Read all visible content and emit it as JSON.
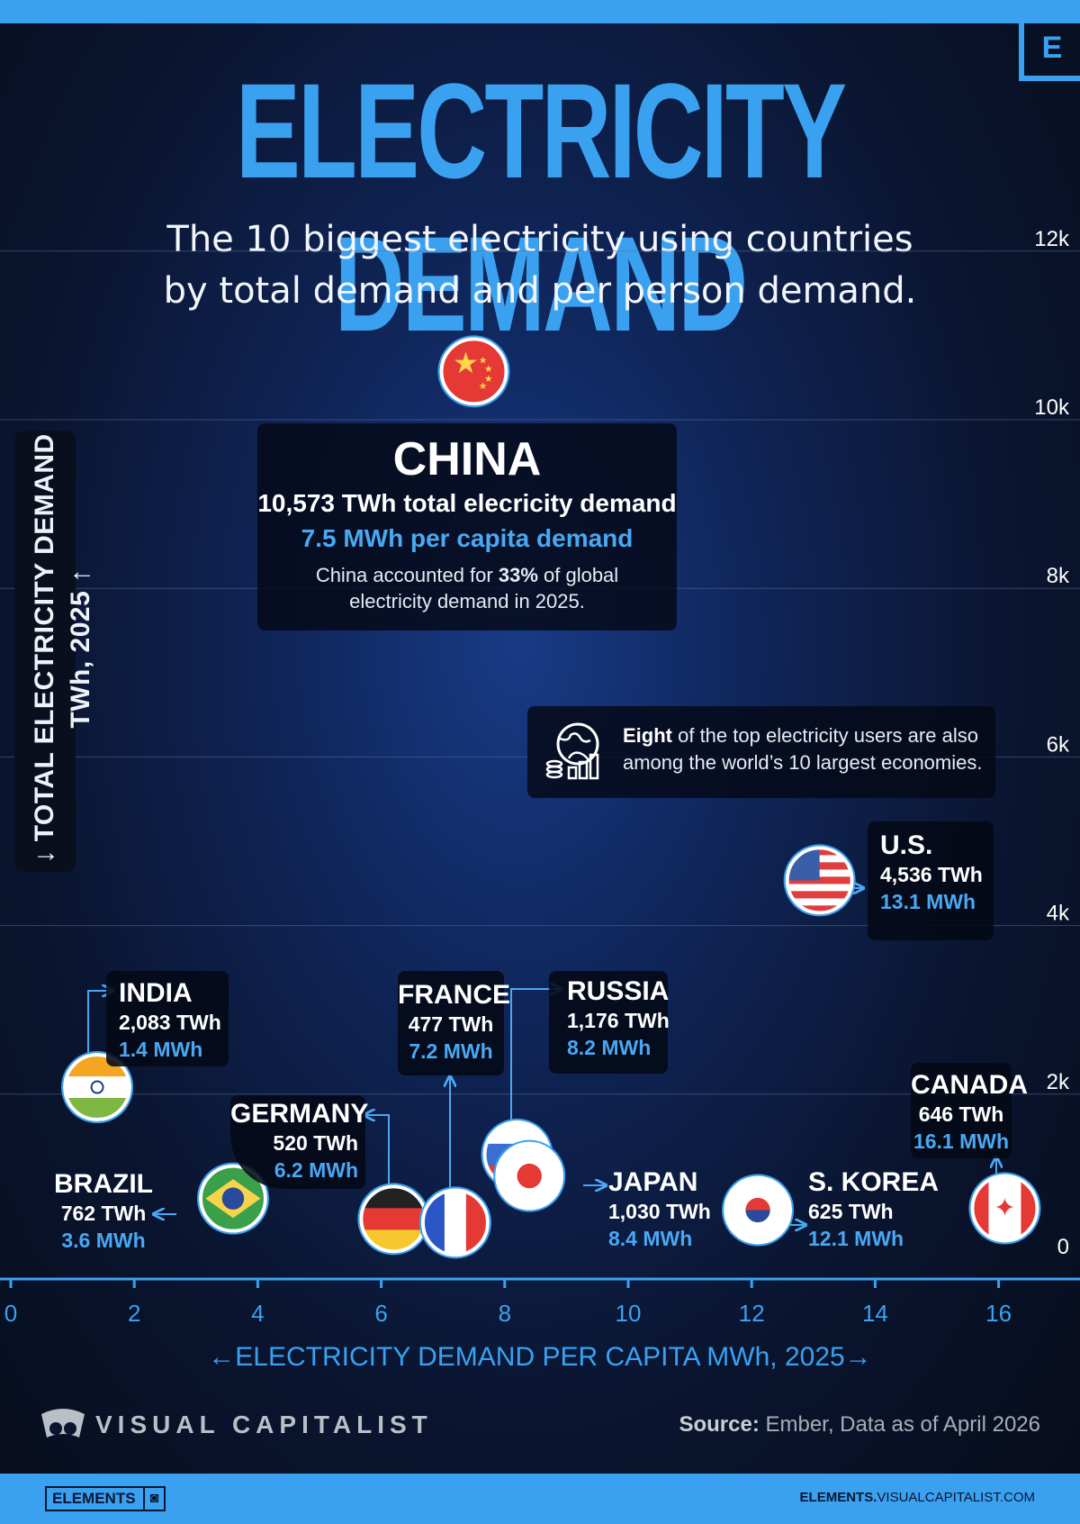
{
  "header": {
    "brand_mark": "E",
    "title": "ELECTRICITY DEMAND",
    "subtitle_line1": "The 10 biggest electricity using countries",
    "subtitle_line2": "by total demand and per person demand."
  },
  "chart_data": {
    "type": "scatter",
    "xlabel": "←ELECTRICITY DEMAND PER CAPITA MWh, 2025→",
    "ylabel": "↓ TOTAL ELECTRICITY DEMAND TWh, 2025 ↑",
    "xlim": [
      0,
      17.5
    ],
    "ylim": [
      0,
      12500
    ],
    "x_ticks": [
      "0",
      "2",
      "4",
      "6",
      "8",
      "10",
      "12",
      "14",
      "16"
    ],
    "y_ticks": [
      "0",
      "2k",
      "4k",
      "6k",
      "8k",
      "10k",
      "12k"
    ],
    "grid": true,
    "points": [
      {
        "country": "CHINA",
        "x": 7.5,
        "y": 10573,
        "twh_label": "10,573 TWh total elecricity demand",
        "mwh_label": "7.5 MWh per capita demand",
        "flag": "china-flag"
      },
      {
        "country": "U.S.",
        "x": 13.1,
        "y": 4536,
        "twh_label": "4,536 TWh",
        "mwh_label": "13.1 MWh",
        "flag": "us-flag"
      },
      {
        "country": "INDIA",
        "x": 1.4,
        "y": 2083,
        "twh_label": "2,083 TWh",
        "mwh_label": "1.4 MWh",
        "flag": "india-flag"
      },
      {
        "country": "RUSSIA",
        "x": 8.2,
        "y": 1176,
        "twh_label": "1,176 TWh",
        "mwh_label": "8.2 MWh",
        "flag": "russia-flag"
      },
      {
        "country": "JAPAN",
        "x": 8.4,
        "y": 1030,
        "twh_label": "1,030 TWh",
        "mwh_label": "8.4 MWh",
        "flag": "japan-flag"
      },
      {
        "country": "BRAZIL",
        "x": 3.6,
        "y": 762,
        "twh_label": "762 TWh",
        "mwh_label": "3.6 MWh",
        "flag": "brazil-flag"
      },
      {
        "country": "CANADA",
        "x": 16.1,
        "y": 646,
        "twh_label": "646 TWh",
        "mwh_label": "16.1 MWh",
        "flag": "canada-flag"
      },
      {
        "country": "S. KOREA",
        "x": 12.1,
        "y": 625,
        "twh_label": "625 TWh",
        "mwh_label": "12.1 MWh",
        "flag": "south-korea-flag"
      },
      {
        "country": "GERMANY",
        "x": 6.2,
        "y": 520,
        "twh_label": "520 TWh",
        "mwh_label": "6.2 MWh",
        "flag": "germany-flag"
      },
      {
        "country": "FRANCE",
        "x": 7.2,
        "y": 477,
        "twh_label": "477 TWh",
        "mwh_label": "7.2 MWh",
        "flag": "france-flag"
      }
    ]
  },
  "china_note": {
    "prefix": "China accounted for ",
    "highlight": "33%",
    "suffix": " of global electricity demand in 2025."
  },
  "economies_note": {
    "icon": "globe-economy-icon",
    "bold": "Eight",
    "text": " of the top electricity users are also among the world’s 10 largest economies."
  },
  "footer": {
    "publisher": "VISUAL CAPITALIST",
    "source_label": "Source:",
    "source_text": " Ember, Data as of April 2026",
    "badge": "ELEMENTS",
    "url_bold": "ELEMENTS.",
    "url_rest": "VISUALCAPITALIST.COM"
  },
  "colors": {
    "accent": "#3aa1f0",
    "background": "#0a1530",
    "label_blue": "#4aa8f3"
  }
}
